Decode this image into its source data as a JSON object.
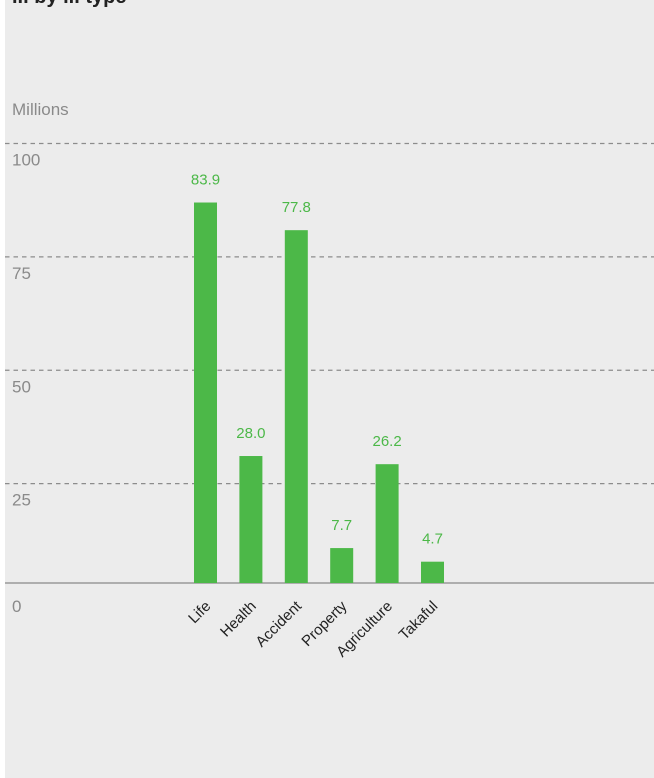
{
  "chart_data": {
    "type": "bar",
    "title": "... by ... type",
    "unit_label": "Millions",
    "categories": [
      "Life",
      "Health",
      "Accident",
      "Property",
      "Agriculture",
      "Takaful"
    ],
    "values": [
      83.9,
      28.0,
      77.8,
      7.7,
      26.2,
      4.7
    ],
    "value_labels": [
      "83.9",
      "28.0",
      "77.8",
      "7.7",
      "26.2",
      "4.7"
    ],
    "yticks": [
      "0",
      "25",
      "50",
      "75",
      "100"
    ],
    "ylim": [
      0,
      100
    ],
    "grid": "dashed horizontal",
    "bar_color": "#4cb848",
    "value_label_color": "#4cb848",
    "background_color": "#ececec"
  }
}
